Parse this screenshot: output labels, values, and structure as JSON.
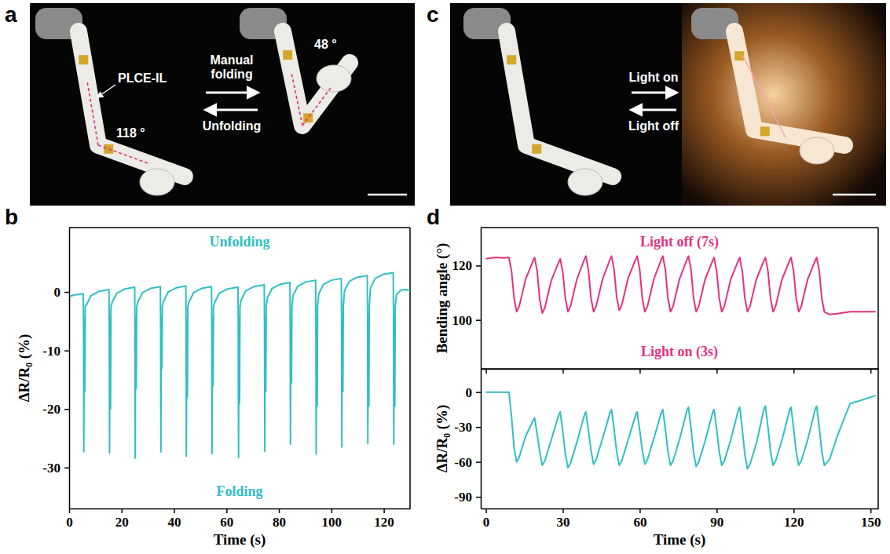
{
  "chart_data": [
    {
      "label": "b",
      "type": "line",
      "x_label": "Time (s)",
      "y_label": "ΔR/R₀ (%)",
      "annotations": [
        "Unfolding",
        "Folding"
      ],
      "xlim": [
        0,
        130
      ],
      "xticks": [
        0,
        20,
        40,
        60,
        80,
        100,
        120
      ],
      "ylim": [
        -37,
        11
      ],
      "yticks": [
        -30,
        -20,
        -10,
        0
      ],
      "x": [
        0,
        2,
        4,
        5.4,
        5.5,
        5.6,
        5.75,
        5.9,
        6.0,
        6.15,
        6.6,
        8.4,
        11.4,
        15.2,
        15.3,
        15.4,
        15.55,
        15.7,
        15.8,
        15.95,
        16.4,
        18.2,
        21.2,
        25.0,
        25.1,
        25.2,
        25.35,
        25.5,
        25.6,
        25.75,
        26.2,
        28.0,
        31.0,
        34.8,
        34.9,
        35.0,
        35.15,
        35.3,
        35.4,
        35.55,
        36.0,
        37.8,
        40.8,
        44.5,
        44.6,
        44.7,
        44.85,
        45.0,
        45.1,
        45.25,
        45.7,
        47.5,
        50.5,
        54.3,
        54.4,
        54.5,
        54.65,
        54.8,
        54.9,
        55.05,
        55.5,
        57.3,
        60.3,
        64.4,
        64.5,
        64.6,
        64.75,
        64.9,
        65.0,
        65.15,
        65.6,
        67.4,
        70.4,
        74.4,
        74.5,
        74.6,
        74.75,
        74.9,
        75.0,
        75.15,
        75.6,
        77.4,
        80.4,
        84.2,
        84.3,
        84.4,
        84.55,
        84.7,
        84.8,
        84.95,
        85.4,
        87.2,
        90.2,
        94.0,
        94.1,
        94.2,
        94.35,
        94.5,
        94.6,
        94.75,
        95.2,
        97.0,
        100.0,
        103.8,
        103.9,
        104.0,
        104.15,
        104.3,
        104.4,
        104.55,
        105.0,
        106.8,
        109.8,
        113.7,
        113.8,
        113.9,
        114.05,
        114.2,
        114.3,
        114.45,
        114.9,
        116.7,
        119.7,
        123.6,
        123.7,
        123.8,
        123.95,
        124.1,
        124.2,
        124.35,
        124.8,
        126.5,
        128.5,
        130
      ],
      "series": [
        {
          "color": "#2fbfc4",
          "values": [
            -0.8,
            -0.5,
            -0.4,
            -0.3,
            -6,
            -27.3,
            -5,
            -4.5,
            -17,
            -2.5,
            -2.2,
            -0.6,
            0.1,
            0.4,
            -6,
            -27.5,
            -5,
            -4.5,
            -20,
            -2.5,
            -1.8,
            -0.2,
            0.5,
            0.8,
            -6,
            -28.4,
            -5,
            -4.5,
            -16.5,
            -2.5,
            -1.7,
            -0.1,
            0.6,
            0.9,
            -6,
            -27.3,
            -5,
            -4.5,
            -13,
            -2.5,
            -1.6,
            0.0,
            0.7,
            1.0,
            -6,
            -28.1,
            -5,
            -4.5,
            -18,
            -2.5,
            -1.7,
            -0.1,
            0.6,
            0.9,
            -6,
            -27.6,
            -5,
            -4.5,
            -16,
            -2.5,
            -1.8,
            -0.2,
            0.5,
            0.8,
            -6,
            -28.3,
            -5,
            -4.5,
            -19,
            -2.5,
            -1.4,
            0.2,
            0.9,
            1.2,
            -6,
            -27.2,
            -5,
            -4.5,
            -17,
            -2.5,
            -1.0,
            0.6,
            1.3,
            1.6,
            -6,
            -26.0,
            -5,
            -4.5,
            -15.5,
            -2.5,
            -0.6,
            1.0,
            1.7,
            2.0,
            -6,
            -27.7,
            -5,
            -4.5,
            -19.5,
            -2.5,
            -0.3,
            1.3,
            2.0,
            2.3,
            -6,
            -26.5,
            -5,
            -4.5,
            -17,
            -2.5,
            0.2,
            1.8,
            2.5,
            2.8,
            -6,
            -25.9,
            -5,
            -4.5,
            -19.5,
            -2.5,
            0.7,
            2.3,
            3.0,
            3.3,
            -6,
            -26.0,
            -5,
            -4.5,
            -19.5,
            -2.5,
            -0.5,
            0.3,
            0.4,
            0.2
          ]
        }
      ]
    },
    {
      "label": "d",
      "type": "line",
      "y_label": "Bending angle (°)",
      "annotations": [
        "Light off (7s)",
        "Light on (3s)"
      ],
      "tick_labels": "y",
      "xlim": [
        -2,
        153
      ],
      "xticks": [
        0,
        30,
        60,
        90,
        120,
        150
      ],
      "ylim": [
        82,
        134
      ],
      "yticks": [
        100,
        120
      ],
      "x": [
        0,
        4,
        7,
        9,
        10,
        11,
        12,
        13,
        15.5,
        18.5,
        19,
        20,
        21,
        22,
        23,
        25.5,
        28.5,
        29,
        30,
        31,
        32,
        33,
        35.5,
        38.5,
        39,
        40,
        41,
        42,
        43,
        45.5,
        48.5,
        49,
        50,
        51,
        52,
        53,
        55.5,
        58.5,
        59,
        60,
        61,
        62,
        63,
        65.5,
        68.5,
        69,
        70,
        71,
        72,
        73,
        75.5,
        78.5,
        79,
        80,
        81,
        82,
        83,
        85.5,
        88.5,
        89,
        90,
        91,
        92,
        93,
        95.5,
        98.5,
        99,
        100,
        101,
        102,
        103,
        105.5,
        108.5,
        109,
        110,
        111,
        112,
        113,
        115.5,
        118.5,
        119,
        120,
        121,
        122,
        123,
        125.5,
        128.5,
        129,
        130,
        131,
        132,
        134,
        137,
        142,
        152
      ],
      "series": [
        {
          "color": "#e6307f",
          "values": [
            122.5,
            123,
            122.8,
            123,
            118,
            108,
            103,
            105,
            115,
            122,
            123,
            118,
            107.5,
            102.5,
            104.5,
            114.5,
            121.5,
            122.5,
            117.5,
            108,
            103,
            105,
            115,
            122.5,
            123.5,
            118.5,
            108,
            103,
            105,
            115,
            122.5,
            123.5,
            118.5,
            108.5,
            103.5,
            105.5,
            115.5,
            122.5,
            123.5,
            118.5,
            108,
            103,
            105,
            115,
            122.5,
            123.5,
            118.5,
            108,
            103,
            105,
            115,
            122.5,
            123.5,
            118.5,
            108,
            103,
            105,
            115,
            122,
            123,
            118,
            108,
            103,
            105,
            115,
            122,
            123,
            118,
            108,
            103,
            105,
            115,
            122,
            123,
            118,
            108,
            103,
            105,
            115,
            122,
            123,
            118,
            108,
            103,
            105,
            115,
            122,
            123,
            118,
            108,
            103,
            102,
            102.3,
            103,
            103
          ]
        }
      ]
    },
    {
      "type": "line",
      "x_label": "Time (s)",
      "y_label": "ΔR/R₀ (%)",
      "xlim": [
        -2,
        153
      ],
      "xticks": [
        0,
        30,
        60,
        90,
        120,
        150
      ],
      "ylim": [
        -100,
        20
      ],
      "yticks": [
        -90,
        -60,
        -30,
        0
      ],
      "x": [
        0,
        4,
        7,
        9,
        10,
        11,
        12,
        13,
        15.5,
        18.5,
        19,
        20,
        21,
        22,
        23,
        25.5,
        28.5,
        29,
        30,
        31,
        32,
        33,
        35.5,
        38.5,
        39,
        40,
        41,
        42,
        43,
        45.5,
        48.5,
        49,
        50,
        51,
        52,
        53,
        55.5,
        58.5,
        59,
        60,
        61,
        62,
        63,
        65.5,
        68.5,
        69,
        70,
        71,
        72,
        73,
        75.5,
        78.5,
        79,
        80,
        81,
        82,
        83,
        85.5,
        88.5,
        89,
        90,
        91,
        92,
        93,
        95.5,
        98.5,
        99,
        100,
        101,
        102,
        103,
        105.5,
        108.5,
        109,
        110,
        111,
        112,
        113,
        115.5,
        118.5,
        119,
        120,
        121,
        122,
        123,
        125.5,
        128.5,
        129,
        130,
        131,
        132,
        134,
        137,
        142,
        152
      ],
      "series": [
        {
          "color": "#2fbfc4",
          "values": [
            0,
            0,
            0,
            0,
            -21,
            -48,
            -60,
            -56,
            -38,
            -24,
            -22,
            -36,
            -51,
            -63,
            -59,
            -41,
            -19,
            -17,
            -34,
            -53,
            -65,
            -61,
            -43,
            -19,
            -17,
            -33,
            -50,
            -62,
            -58,
            -40,
            -17,
            -15,
            -32,
            -51,
            -63,
            -59,
            -41,
            -19,
            -17,
            -33,
            -50,
            -62,
            -58,
            -40,
            -17,
            -15,
            -32,
            -51,
            -63,
            -59,
            -41,
            -15,
            -13,
            -31,
            -52,
            -64,
            -60,
            -42,
            -17,
            -15,
            -32,
            -51,
            -63,
            -59,
            -41,
            -15,
            -13,
            -32,
            -54,
            -66,
            -62,
            -44,
            -14,
            -12,
            -30,
            -51,
            -63,
            -59,
            -41,
            -15,
            -13,
            -31,
            -51,
            -63,
            -59,
            -41,
            -14,
            -12,
            -30,
            -51,
            -63,
            -58,
            -38,
            -10,
            -3
          ]
        }
      ]
    }
  ],
  "photos": [
    {
      "label": "a",
      "callout": "PLCE-IL",
      "angles": [
        "118 °",
        "48 °"
      ],
      "forward": "Manual folding",
      "backward": "Unfolding"
    },
    {
      "label": "c",
      "forward": "Light on",
      "backward": "Light off"
    }
  ]
}
